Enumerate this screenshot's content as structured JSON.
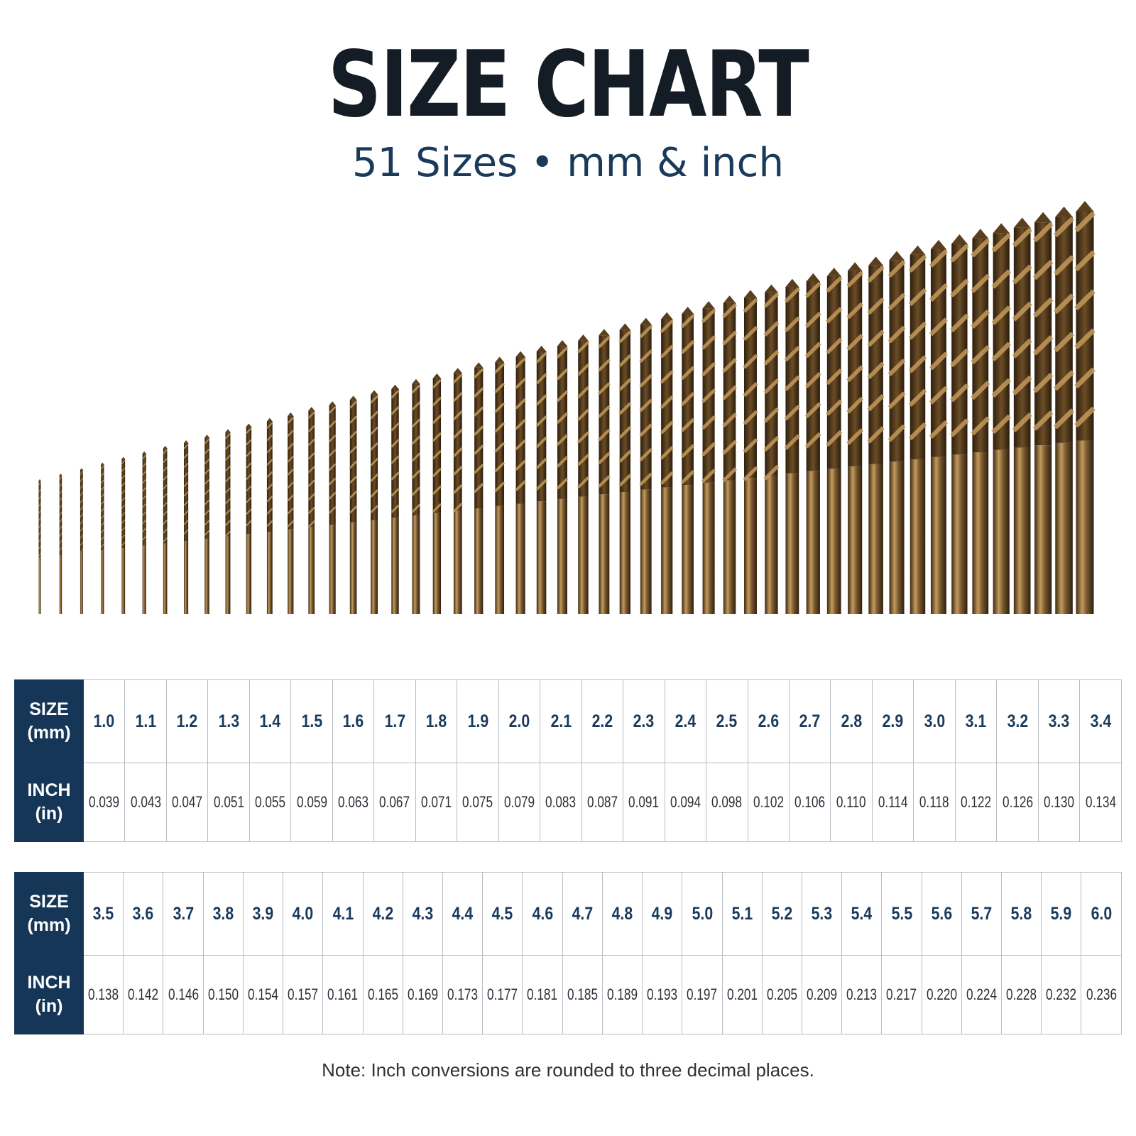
{
  "title": "SIZE CHART",
  "subtitle": {
    "count": "51 Sizes",
    "separator": "•",
    "units": "mm & inch"
  },
  "table_header": {
    "size_label": "SIZE",
    "size_unit": "(mm)",
    "inch_label": "INCH",
    "inch_unit": "(in)"
  },
  "table1": {
    "mm": [
      "1.0",
      "1.1",
      "1.2",
      "1.3",
      "1.4",
      "1.5",
      "1.6",
      "1.7",
      "1.8",
      "1.9",
      "2.0",
      "2.1",
      "2.2",
      "2.3",
      "2.4",
      "2.5",
      "2.6",
      "2.7",
      "2.8",
      "2.9",
      "3.0",
      "3.1",
      "3.2",
      "3.3",
      "3.4"
    ],
    "inch": [
      "0.039",
      "0.043",
      "0.047",
      "0.051",
      "0.055",
      "0.059",
      "0.063",
      "0.067",
      "0.071",
      "0.075",
      "0.079",
      "0.083",
      "0.087",
      "0.091",
      "0.094",
      "0.098",
      "0.102",
      "0.106",
      "0.110",
      "0.114",
      "0.118",
      "0.122",
      "0.126",
      "0.130",
      "0.134"
    ]
  },
  "table2": {
    "mm": [
      "3.5",
      "3.6",
      "3.7",
      "3.8",
      "3.9",
      "4.0",
      "4.1",
      "4.2",
      "4.3",
      "4.4",
      "4.5",
      "4.6",
      "4.7",
      "4.8",
      "4.9",
      "5.0",
      "5.1",
      "5.2",
      "5.3",
      "5.4",
      "5.5",
      "5.6",
      "5.7",
      "5.8",
      "5.9",
      "6.0"
    ],
    "inch": [
      "0.138",
      "0.142",
      "0.146",
      "0.150",
      "0.154",
      "0.157",
      "0.161",
      "0.165",
      "0.169",
      "0.173",
      "0.177",
      "0.181",
      "0.185",
      "0.189",
      "0.193",
      "0.197",
      "0.201",
      "0.205",
      "0.209",
      "0.213",
      "0.217",
      "0.220",
      "0.224",
      "0.228",
      "0.232",
      "0.236"
    ]
  },
  "drill_bits": {
    "count": 51,
    "diameters_mm": [
      1.0,
      1.1,
      1.2,
      1.3,
      1.4,
      1.5,
      1.6,
      1.7,
      1.8,
      1.9,
      2.0,
      2.1,
      2.2,
      2.3,
      2.4,
      2.5,
      2.6,
      2.7,
      2.8,
      2.9,
      3.0,
      3.1,
      3.2,
      3.3,
      3.4,
      3.5,
      3.6,
      3.7,
      3.8,
      3.9,
      4.0,
      4.1,
      4.2,
      4.3,
      4.4,
      4.5,
      4.6,
      4.7,
      4.8,
      4.9,
      5.0,
      5.1,
      5.2,
      5.3,
      5.4,
      5.5,
      5.6,
      5.7,
      5.8,
      5.9,
      6.0
    ],
    "colors": {
      "dark": "#3d2a14",
      "mid": "#7a5a30",
      "light": "#c49a5c"
    }
  },
  "colors": {
    "header_bg": "#163658",
    "accent_text": "#1a3a5c",
    "title_text": "#141c26"
  },
  "note": "Note: Inch conversions are rounded to three decimal places."
}
